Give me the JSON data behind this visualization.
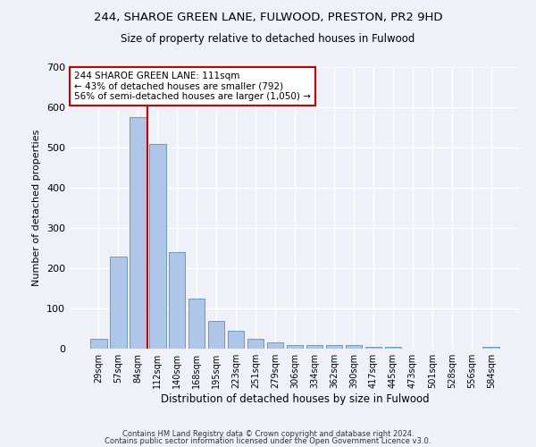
{
  "title1": "244, SHAROE GREEN LANE, FULWOOD, PRESTON, PR2 9HD",
  "title2": "Size of property relative to detached houses in Fulwood",
  "xlabel": "Distribution of detached houses by size in Fulwood",
  "ylabel": "Number of detached properties",
  "categories": [
    "29sqm",
    "57sqm",
    "84sqm",
    "112sqm",
    "140sqm",
    "168sqm",
    "195sqm",
    "223sqm",
    "251sqm",
    "279sqm",
    "306sqm",
    "334sqm",
    "362sqm",
    "390sqm",
    "417sqm",
    "445sqm",
    "473sqm",
    "501sqm",
    "528sqm",
    "556sqm",
    "584sqm"
  ],
  "values": [
    25,
    230,
    575,
    510,
    240,
    125,
    70,
    45,
    25,
    15,
    10,
    10,
    8,
    8,
    5,
    5,
    0,
    0,
    0,
    0,
    5
  ],
  "bar_color": "#aec6e8",
  "bar_edge_color": "#5a8fc0",
  "annotation_text": "244 SHAROE GREEN LANE: 111sqm\n← 43% of detached houses are smaller (792)\n56% of semi-detached houses are larger (1,050) →",
  "annotation_box_color": "#ffffff",
  "annotation_box_edge": "#cc0000",
  "vline_color": "#cc0000",
  "bg_color": "#eef2f8",
  "grid_color": "#ffffff",
  "ylim": [
    0,
    700
  ],
  "yticks": [
    0,
    100,
    200,
    300,
    400,
    500,
    600,
    700
  ],
  "footer1": "Contains HM Land Registry data © Crown copyright and database right 2024.",
  "footer2": "Contains public sector information licensed under the Open Government Licence v3.0."
}
